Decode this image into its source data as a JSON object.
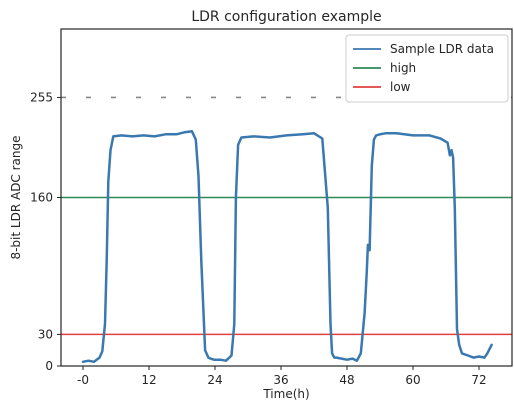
{
  "chart_data": {
    "type": "line",
    "title": "LDR configuration example",
    "xlabel": "Time(h)",
    "ylabel": "8-bit LDR ADC range",
    "xlim": [
      -4,
      78
    ],
    "ylim": [
      0,
      320
    ],
    "xticks": [
      {
        "value": 0,
        "label": "-0"
      },
      {
        "value": 12,
        "label": "12"
      },
      {
        "value": 24,
        "label": "24"
      },
      {
        "value": 36,
        "label": "36"
      },
      {
        "value": 48,
        "label": "48"
      },
      {
        "value": 60,
        "label": "60"
      },
      {
        "value": 72,
        "label": "72"
      }
    ],
    "yticks": [
      {
        "value": 0,
        "label": "0"
      },
      {
        "value": 30,
        "label": "30"
      },
      {
        "value": 160,
        "label": "160"
      },
      {
        "value": 255,
        "label": "255"
      }
    ],
    "grid": false,
    "legend_position": "top-right",
    "series": [
      {
        "name": "Sample LDR data",
        "color": "#3a78b0",
        "x": [
          0,
          1,
          2,
          3,
          3.5,
          4,
          4.3,
          4.6,
          5.0,
          5.5,
          7,
          9,
          11,
          13,
          15,
          17,
          18.5,
          19.8,
          20.5,
          21,
          21.5,
          22.2,
          22.8,
          23.2,
          23.8,
          25,
          26,
          27,
          27.5,
          27.8,
          28.2,
          28.8,
          31,
          34,
          37,
          40,
          42,
          43.5,
          44.5,
          45.0,
          45.3,
          45.7,
          46.1,
          47,
          48,
          49,
          49.8,
          50.5,
          51.2,
          51.6,
          51.8,
          52.1,
          52.5,
          52.9,
          53.3,
          54,
          55,
          57,
          60,
          63,
          65,
          66.3,
          66.7,
          67.0,
          67.3,
          67.6,
          68.0,
          68.4,
          68.9,
          70,
          71,
          72,
          73,
          73.5,
          74.3
        ],
        "y": [
          4,
          5,
          4,
          8,
          14,
          40,
          100,
          175,
          205,
          218,
          219,
          218,
          219,
          218,
          220,
          220,
          222,
          223,
          215,
          180,
          100,
          15,
          8,
          7,
          6,
          6,
          5,
          10,
          40,
          160,
          210,
          217,
          218,
          217,
          219,
          220,
          221,
          216,
          150,
          40,
          12,
          8,
          8,
          7,
          6,
          7,
          5,
          12,
          50,
          90,
          115,
          110,
          190,
          215,
          219,
          220,
          221,
          221,
          219,
          219,
          216,
          212,
          200,
          205,
          198,
          150,
          35,
          20,
          12,
          10,
          8,
          9,
          8,
          12,
          20
        ]
      },
      {
        "name": "high",
        "color": "#2e8b57",
        "constant": 160
      },
      {
        "name": "low",
        "color": "#e33f3f",
        "constant": 30
      },
      {
        "name": "",
        "color": "#888888",
        "constant": 255,
        "style": "dashed"
      }
    ]
  }
}
